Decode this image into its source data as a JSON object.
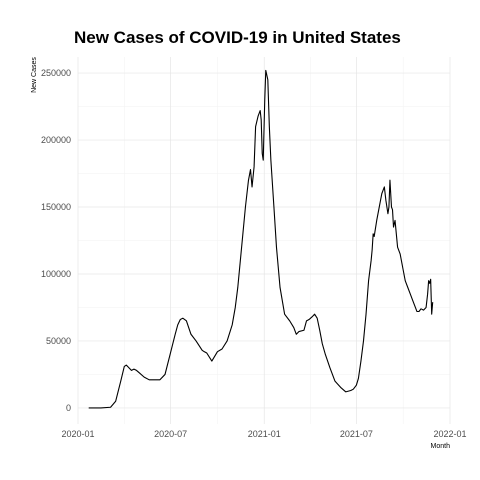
{
  "chart_data": {
    "type": "line",
    "title": "New Cases of COVID-19 in United States",
    "xlabel": "Month",
    "ylabel": "New Cases",
    "xlim": [
      "2020-01-01",
      "2022-01-01"
    ],
    "ylim": [
      -12000,
      262000
    ],
    "x_ticks": [
      "2020-01",
      "2020-07",
      "2021-01",
      "2021-07",
      "2022-01"
    ],
    "y_ticks": [
      0,
      50000,
      100000,
      150000,
      200000,
      250000
    ],
    "y_tick_labels": [
      "0",
      "50000",
      "100000",
      "150000",
      "200000",
      "250000"
    ],
    "grid": true,
    "series": [
      {
        "x": [
          "2020-01-22",
          "2020-02-15",
          "2020-03-05",
          "2020-03-15",
          "2020-03-25",
          "2020-04-01",
          "2020-04-05",
          "2020-04-10",
          "2020-04-15",
          "2020-04-20",
          "2020-04-25",
          "2020-05-01",
          "2020-05-10",
          "2020-05-20",
          "2020-06-01",
          "2020-06-10",
          "2020-06-20",
          "2020-06-30",
          "2020-07-10",
          "2020-07-15",
          "2020-07-20",
          "2020-07-25",
          "2020-08-01",
          "2020-08-10",
          "2020-08-20",
          "2020-09-01",
          "2020-09-05",
          "2020-09-10",
          "2020-09-20",
          "2020-10-01",
          "2020-10-10",
          "2020-10-20",
          "2020-10-30",
          "2020-11-05",
          "2020-11-10",
          "2020-11-15",
          "2020-11-20",
          "2020-11-25",
          "2020-11-28",
          "2020-12-01",
          "2020-12-05",
          "2020-12-08",
          "2020-12-12",
          "2020-12-15",
          "2020-12-20",
          "2020-12-24",
          "2020-12-26",
          "2020-12-28",
          "2020-12-30",
          "2021-01-02",
          "2021-01-04",
          "2021-01-08",
          "2021-01-11",
          "2021-01-14",
          "2021-01-20",
          "2021-01-25",
          "2021-02-01",
          "2021-02-10",
          "2021-02-20",
          "2021-02-28",
          "2021-03-05",
          "2021-03-10",
          "2021-03-20",
          "2021-03-25",
          "2021-03-30",
          "2021-04-05",
          "2021-04-10",
          "2021-04-15",
          "2021-04-20",
          "2021-04-25",
          "2021-05-01",
          "2021-05-10",
          "2021-05-20",
          "2021-06-01",
          "2021-06-10",
          "2021-06-20",
          "2021-06-25",
          "2021-07-01",
          "2021-07-05",
          "2021-07-10",
          "2021-07-15",
          "2021-07-20",
          "2021-07-25",
          "2021-07-30",
          "2021-08-01",
          "2021-08-03",
          "2021-08-05",
          "2021-08-10",
          "2021-08-15",
          "2021-08-20",
          "2021-08-25",
          "2021-08-28",
          "2021-09-01",
          "2021-09-03",
          "2021-09-05",
          "2021-09-08",
          "2021-09-10",
          "2021-09-12",
          "2021-09-15",
          "2021-09-20",
          "2021-09-25",
          "2021-09-30",
          "2021-10-05",
          "2021-10-10",
          "2021-10-15",
          "2021-10-20",
          "2021-10-25",
          "2021-10-28",
          "2021-11-01",
          "2021-11-05",
          "2021-11-10",
          "2021-11-15",
          "2021-11-18",
          "2021-11-20",
          "2021-11-22",
          "2021-11-24",
          "2021-11-26",
          "2021-11-28"
        ],
        "y": [
          0,
          0,
          500,
          5000,
          20000,
          31000,
          32000,
          30000,
          28000,
          29000,
          28000,
          26000,
          23000,
          21000,
          21000,
          21000,
          25000,
          40000,
          55000,
          62000,
          66000,
          67000,
          65000,
          55000,
          50000,
          43000,
          42000,
          41000,
          35000,
          42000,
          44000,
          50000,
          62000,
          75000,
          90000,
          110000,
          130000,
          150000,
          160000,
          170000,
          178000,
          165000,
          180000,
          210000,
          218000,
          222000,
          215000,
          190000,
          185000,
          230000,
          252000,
          245000,
          210000,
          185000,
          150000,
          120000,
          90000,
          70000,
          65000,
          60000,
          55000,
          57000,
          58000,
          65000,
          66000,
          68000,
          70000,
          67000,
          58000,
          48000,
          40000,
          30000,
          20000,
          15000,
          12000,
          13000,
          14000,
          17000,
          22000,
          35000,
          50000,
          70000,
          95000,
          110000,
          118000,
          130000,
          128000,
          140000,
          150000,
          160000,
          165000,
          155000,
          145000,
          150000,
          170000,
          150000,
          148000,
          135000,
          140000,
          120000,
          115000,
          105000,
          95000,
          90000,
          85000,
          80000,
          75000,
          72000,
          72000,
          74000,
          73000,
          75000,
          85000,
          95000,
          93000,
          96000,
          70000,
          79000
        ]
      }
    ]
  }
}
